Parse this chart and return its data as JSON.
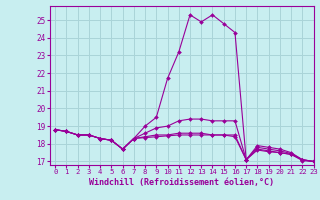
{
  "xlabel": "Windchill (Refroidissement éolien,°C)",
  "ylabel": "",
  "xlim": [
    -0.5,
    23
  ],
  "ylim": [
    16.8,
    25.8
  ],
  "yticks": [
    17,
    18,
    19,
    20,
    21,
    22,
    23,
    24,
    25
  ],
  "xticks": [
    0,
    1,
    2,
    3,
    4,
    5,
    6,
    7,
    8,
    9,
    10,
    11,
    12,
    13,
    14,
    15,
    16,
    17,
    18,
    19,
    20,
    21,
    22,
    23
  ],
  "bg_color": "#c8eef0",
  "grid_color": "#aad4d8",
  "line_color": "#990099",
  "series": [
    [
      18.8,
      18.7,
      18.5,
      18.5,
      18.3,
      18.2,
      17.7,
      18.3,
      19.0,
      19.5,
      21.7,
      23.2,
      25.3,
      24.9,
      25.3,
      24.8,
      24.3,
      17.1,
      17.9,
      17.8,
      17.7,
      17.5,
      17.1,
      17.0
    ],
    [
      18.8,
      18.7,
      18.5,
      18.5,
      18.3,
      18.2,
      17.7,
      18.3,
      18.35,
      18.4,
      18.45,
      18.5,
      18.5,
      18.5,
      18.5,
      18.5,
      18.5,
      17.1,
      17.7,
      17.6,
      17.5,
      17.4,
      17.1,
      17.0
    ],
    [
      18.8,
      18.7,
      18.5,
      18.5,
      18.3,
      18.2,
      17.7,
      18.3,
      18.6,
      18.9,
      19.0,
      19.3,
      19.4,
      19.4,
      19.3,
      19.3,
      19.3,
      17.1,
      17.8,
      17.7,
      17.6,
      17.45,
      17.1,
      17.0
    ],
    [
      18.8,
      18.7,
      18.5,
      18.5,
      18.3,
      18.2,
      17.7,
      18.3,
      18.4,
      18.5,
      18.5,
      18.6,
      18.6,
      18.6,
      18.5,
      18.5,
      18.4,
      17.1,
      17.65,
      17.55,
      17.5,
      17.4,
      17.05,
      17.0
    ]
  ]
}
